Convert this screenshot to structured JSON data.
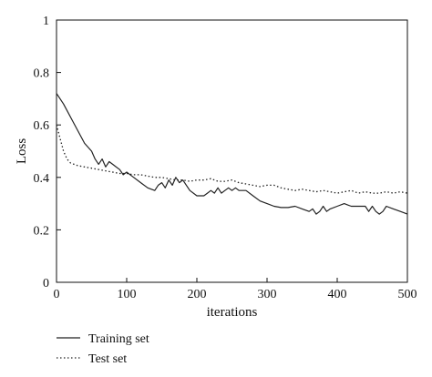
{
  "chart_data": {
    "type": "line",
    "xlabel": "iterations",
    "ylabel": "Loss",
    "xlim": [
      0,
      500
    ],
    "ylim": [
      0,
      1
    ],
    "x_ticks": [
      0,
      100,
      200,
      300,
      400,
      500
    ],
    "y_ticks": [
      0,
      0.2,
      0.4,
      0.6,
      0.8,
      1
    ],
    "y_tick_labels": [
      "0",
      "0.2",
      "0.4",
      "0.6",
      "0.8",
      "1"
    ],
    "grid": false,
    "legend_position": "bottom-left, below plot",
    "series": [
      {
        "name": "Training set",
        "style": "solid",
        "color": "#222222",
        "points": [
          [
            0,
            0.72
          ],
          [
            10,
            0.68
          ],
          [
            20,
            0.63
          ],
          [
            30,
            0.58
          ],
          [
            40,
            0.53
          ],
          [
            50,
            0.5
          ],
          [
            55,
            0.47
          ],
          [
            60,
            0.45
          ],
          [
            65,
            0.47
          ],
          [
            70,
            0.44
          ],
          [
            75,
            0.46
          ],
          [
            80,
            0.45
          ],
          [
            90,
            0.43
          ],
          [
            95,
            0.41
          ],
          [
            100,
            0.42
          ],
          [
            110,
            0.4
          ],
          [
            120,
            0.38
          ],
          [
            130,
            0.36
          ],
          [
            140,
            0.35
          ],
          [
            145,
            0.37
          ],
          [
            150,
            0.38
          ],
          [
            155,
            0.36
          ],
          [
            160,
            0.39
          ],
          [
            165,
            0.37
          ],
          [
            170,
            0.4
          ],
          [
            175,
            0.38
          ],
          [
            180,
            0.39
          ],
          [
            190,
            0.35
          ],
          [
            200,
            0.33
          ],
          [
            210,
            0.33
          ],
          [
            215,
            0.34
          ],
          [
            220,
            0.35
          ],
          [
            225,
            0.34
          ],
          [
            230,
            0.36
          ],
          [
            235,
            0.34
          ],
          [
            240,
            0.35
          ],
          [
            245,
            0.36
          ],
          [
            250,
            0.35
          ],
          [
            255,
            0.36
          ],
          [
            260,
            0.35
          ],
          [
            270,
            0.35
          ],
          [
            280,
            0.33
          ],
          [
            290,
            0.31
          ],
          [
            300,
            0.3
          ],
          [
            310,
            0.29
          ],
          [
            320,
            0.285
          ],
          [
            330,
            0.285
          ],
          [
            340,
            0.29
          ],
          [
            350,
            0.28
          ],
          [
            360,
            0.27
          ],
          [
            365,
            0.28
          ],
          [
            370,
            0.26
          ],
          [
            375,
            0.27
          ],
          [
            380,
            0.29
          ],
          [
            385,
            0.27
          ],
          [
            390,
            0.28
          ],
          [
            400,
            0.29
          ],
          [
            410,
            0.3
          ],
          [
            420,
            0.29
          ],
          [
            430,
            0.29
          ],
          [
            440,
            0.29
          ],
          [
            445,
            0.27
          ],
          [
            450,
            0.29
          ],
          [
            455,
            0.27
          ],
          [
            460,
            0.26
          ],
          [
            465,
            0.27
          ],
          [
            470,
            0.29
          ],
          [
            480,
            0.28
          ],
          [
            490,
            0.27
          ],
          [
            500,
            0.26
          ]
        ]
      },
      {
        "name": "Test set",
        "style": "dotted",
        "color": "#222222",
        "points": [
          [
            0,
            0.6
          ],
          [
            5,
            0.55
          ],
          [
            10,
            0.5
          ],
          [
            15,
            0.47
          ],
          [
            20,
            0.455
          ],
          [
            30,
            0.445
          ],
          [
            40,
            0.44
          ],
          [
            50,
            0.435
          ],
          [
            60,
            0.43
          ],
          [
            70,
            0.425
          ],
          [
            80,
            0.42
          ],
          [
            90,
            0.415
          ],
          [
            100,
            0.415
          ],
          [
            110,
            0.41
          ],
          [
            120,
            0.41
          ],
          [
            130,
            0.405
          ],
          [
            140,
            0.4
          ],
          [
            150,
            0.4
          ],
          [
            160,
            0.395
          ],
          [
            170,
            0.39
          ],
          [
            180,
            0.39
          ],
          [
            190,
            0.385
          ],
          [
            200,
            0.39
          ],
          [
            210,
            0.39
          ],
          [
            220,
            0.395
          ],
          [
            230,
            0.385
          ],
          [
            240,
            0.385
          ],
          [
            250,
            0.39
          ],
          [
            260,
            0.38
          ],
          [
            270,
            0.375
          ],
          [
            280,
            0.37
          ],
          [
            290,
            0.365
          ],
          [
            300,
            0.37
          ],
          [
            310,
            0.37
          ],
          [
            320,
            0.36
          ],
          [
            330,
            0.355
          ],
          [
            340,
            0.35
          ],
          [
            350,
            0.355
          ],
          [
            360,
            0.35
          ],
          [
            370,
            0.345
          ],
          [
            380,
            0.35
          ],
          [
            390,
            0.345
          ],
          [
            400,
            0.34
          ],
          [
            410,
            0.345
          ],
          [
            420,
            0.35
          ],
          [
            430,
            0.34
          ],
          [
            440,
            0.345
          ],
          [
            450,
            0.34
          ],
          [
            460,
            0.34
          ],
          [
            470,
            0.345
          ],
          [
            480,
            0.34
          ],
          [
            490,
            0.345
          ],
          [
            500,
            0.34
          ]
        ]
      }
    ]
  }
}
